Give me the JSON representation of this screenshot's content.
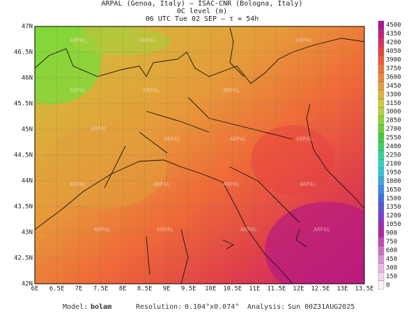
{
  "header": {
    "line1": "ARPAL (Genoa, Italy)  –  ISAC-CNR (Bologna, Italy)",
    "line2": "0C level (m)",
    "line3": "06 UTC Tue 02 SEP  –  τ = 54h"
  },
  "map": {
    "lat_labels": [
      "47N",
      "46.5N",
      "46N",
      "45.5N",
      "45N",
      "44.5N",
      "44N",
      "43.5N",
      "43N",
      "42.5N",
      "42N"
    ],
    "lon_labels": [
      "6E",
      "6.5E",
      "7E",
      "7.5E",
      "8E",
      "8.5E",
      "9E",
      "9.5E",
      "10E",
      "10.5E",
      "11E",
      "11.5E",
      "12E",
      "12.5E",
      "13E",
      "13.5E"
    ],
    "watermark": "ARPAL"
  },
  "colorbar": {
    "levels": [
      0,
      150,
      300,
      450,
      600,
      750,
      900,
      1050,
      1200,
      1350,
      1500,
      1650,
      1800,
      1950,
      2100,
      2250,
      2400,
      2550,
      2700,
      2850,
      3000,
      3150,
      3300,
      3450,
      3600,
      3750,
      3900,
      4050,
      4200,
      4350,
      4500
    ]
  },
  "footer": {
    "model_label": "Model:",
    "model": "bolam",
    "resolution_label": "Resolution:",
    "resolution": "0.104°x0.074°",
    "analysis_label": "Analysis:",
    "analysis": "Sun 00Z31AUG2025"
  }
}
